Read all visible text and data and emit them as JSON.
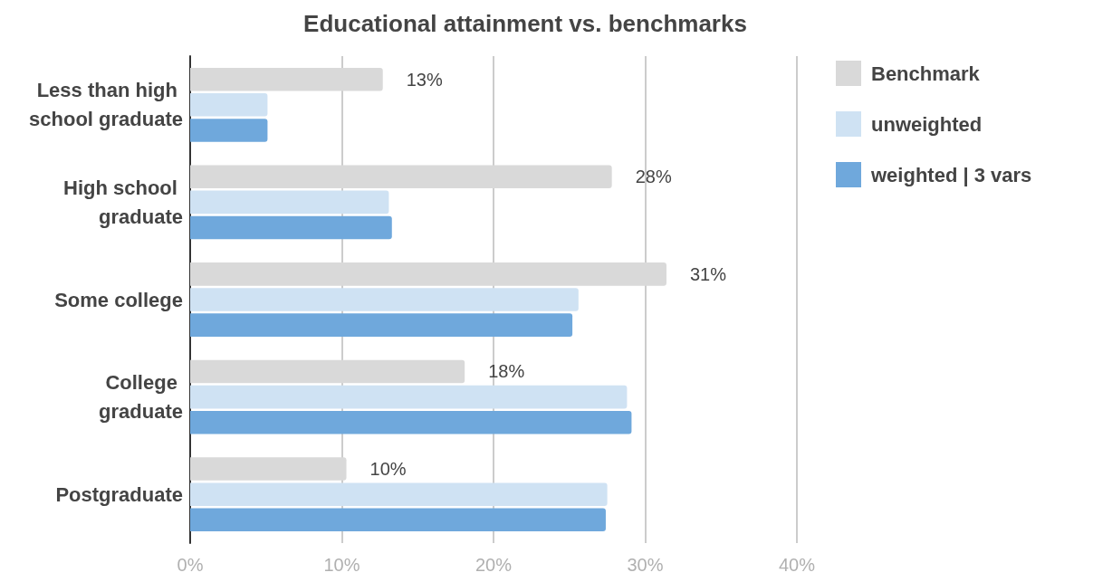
{
  "chart_data": {
    "type": "bar",
    "orientation": "horizontal",
    "title": "Educational attainment vs. benchmarks",
    "categories": [
      "Less than high school graduate",
      "High school graduate",
      "Some college",
      "College graduate",
      "Postgraduate"
    ],
    "series": [
      {
        "name": "Benchmark",
        "color": "#d9d9d9",
        "values": [
          12.7,
          27.8,
          31.4,
          18.1,
          10.3
        ],
        "value_labels": [
          "13%",
          "28%",
          "31%",
          "18%",
          "10%"
        ]
      },
      {
        "name": "unweighted",
        "color": "#cfe2f3",
        "values": [
          5.1,
          13.1,
          25.6,
          28.8,
          27.5
        ]
      },
      {
        "name": "weighted | 3 vars",
        "color": "#6fa8dc",
        "values": [
          5.1,
          13.3,
          25.2,
          29.1,
          27.4
        ]
      }
    ],
    "xlim": [
      0,
      40
    ],
    "xticks": [
      {
        "value": 0,
        "label": "0%"
      },
      {
        "value": 10,
        "label": "10%"
      },
      {
        "value": 20,
        "label": "20%"
      },
      {
        "value": 30,
        "label": "30%"
      },
      {
        "value": 40,
        "label": "40%"
      }
    ],
    "grid": "x",
    "legend": "top right"
  }
}
